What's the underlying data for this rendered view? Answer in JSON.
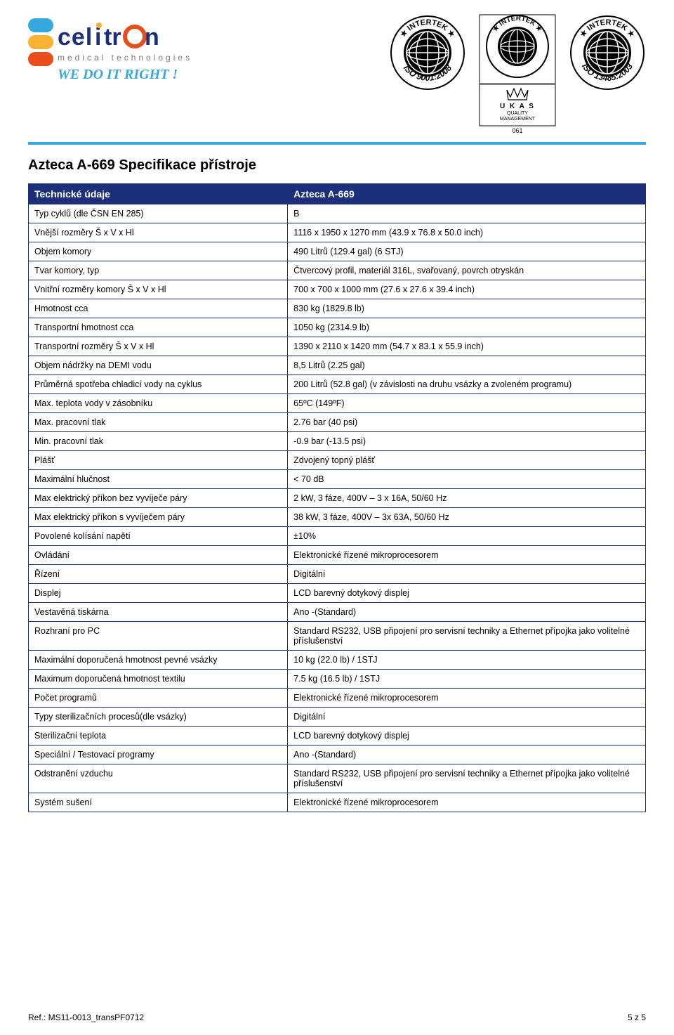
{
  "brand": {
    "name": "celitron",
    "accent_color": "#35a8dd",
    "subtitle": "medical technologies",
    "subtitle_color": "#7a7a7a",
    "slogan": "WE DO IT RIGHT!",
    "slogan_color": "#35a8dd",
    "logo_stripe_colors": [
      "#35a8dd",
      "#f9b233",
      "#e84e1b"
    ]
  },
  "certifications": {
    "iso9001": {
      "provider": "INTERTEK",
      "curve_text": "ISO 9001:2008"
    },
    "ukas": {
      "provider": "INTERTEK",
      "label_lines": [
        "U K A S",
        "QUALITY",
        "MANAGEMENT"
      ],
      "number": "061"
    },
    "iso13485": {
      "provider": "INTERTEK",
      "curve_text": "ISO 13485:2003"
    }
  },
  "page_title": "Azteca A-669 Specifikace přístroje",
  "table": {
    "header_bg": "#1b2f7a",
    "header_fg": "#ffffff",
    "border_color": "#1b2f7a",
    "head_left": "Technické údaje",
    "head_right": "Azteca A-669",
    "rows": [
      {
        "label": "Typ cyklů  (dle ČSN EN  285)",
        "value": "B"
      },
      {
        "label": "Vnější rozměry Š x V x Hl",
        "value": "1116  x 1950 x 1270 mm (43.9 x 76.8 x 50.0 inch)"
      },
      {
        "label": "Objem komory",
        "value": "490 Litrů (129.4 gal) (6 STJ)"
      },
      {
        "label": "Tvar komory, typ",
        "value": "Čtvercový profil, materiál 316L, svařovaný, povrch otryskán"
      },
      {
        "label": "Vnitřní rozměry komory Š x V x Hl",
        "value": "700 x 700 x 1000 mm (27.6  x 27.6 x 39.4 inch)"
      },
      {
        "label": "Hmotnost cca",
        "value": "830 kg (1829.8 lb)"
      },
      {
        "label": "Transportní hmotnost cca",
        "value": "1050 kg (2314.9 lb)"
      },
      {
        "label": "Transportní rozměry Š x V x Hl",
        "value": "1390 x 2110 x 1420 mm (54.7 x 83.1 x 55.9 inch)"
      },
      {
        "label": "Objem nádržky na DEMI vodu",
        "value": "8,5  Litrů (2.25 gal)"
      },
      {
        "label": "Průměrná spotřeba chladicí vody na cyklus",
        "value": "200 Litrů (52.8 gal) (v závislosti na druhu vsázky a zvoleném programu)"
      },
      {
        "label": "Max. teplota vody v zásobníku",
        "value": "65ºC (149ºF)"
      },
      {
        "label": "Max. pracovní tlak",
        "value": "2.76 bar (40 psi)"
      },
      {
        "label": "Min. pracovní tlak",
        "value": "-0.9 bar (-13.5 psi)"
      },
      {
        "label": "Plášť",
        "value": "Zdvojený topný plášť"
      },
      {
        "label": "Maximální hlučnost",
        "value": "< 70 dB"
      },
      {
        "label": "Max elektrický příkon bez vyvíječe páry",
        "value": "2 kW, 3 fáze, 400V – 3 x 16A, 50/60 Hz"
      },
      {
        "label": "Max elektrický příkon s vyvíječem páry",
        "value": "38 kW, 3 fáze, 400V – 3x 63A, 50/60 Hz"
      },
      {
        "label": "Povolené kolísání napětí",
        "value": "±10%"
      },
      {
        "label": "Ovládání",
        "value": "Elektronické řízené mikroprocesorem"
      },
      {
        "label": "Řízení",
        "value": "Digitální"
      },
      {
        "label": "Displej",
        "value": "LCD barevný dotykový displej"
      },
      {
        "label": "Vestavěná tiskárna",
        "value": "Ano -(Standard)"
      },
      {
        "label": "Rozhraní pro PC",
        "value": "Standard RS232, USB připojení pro servisní techniky a  Ethernet přípojka jako volitelné příslušenství"
      },
      {
        "label": "Maximální doporučená hmotnost pevné vsázky",
        "value": "10 kg (22.0 lb) / 1STJ"
      },
      {
        "label": "Maximum doporučená hmotnost textilu",
        "value": "7.5 kg (16.5 lb) / 1STJ"
      },
      {
        "label": "Počet programů",
        "value": "Elektronické řízené mikroprocesorem"
      },
      {
        "label": "Typy sterilizačních procesů(dle vsázky)",
        "value": "Digitální"
      },
      {
        "label": "Sterilizační teplota",
        "value": "LCD barevný dotykový displej"
      },
      {
        "label": "Speciální / Testovací programy",
        "value": "Ano -(Standard)"
      },
      {
        "label": "Odstranění vzduchu",
        "value": "Standard RS232, USB připojení pro servisní techniky a  Ethernet přípojka jako volitelné příslušenství"
      },
      {
        "label": "Systém sušení",
        "value": "Elektronické řízené mikroprocesorem"
      }
    ]
  },
  "footer": {
    "ref": "Ref.: MS11-0013_transPF0712",
    "page": "5 z 5"
  }
}
